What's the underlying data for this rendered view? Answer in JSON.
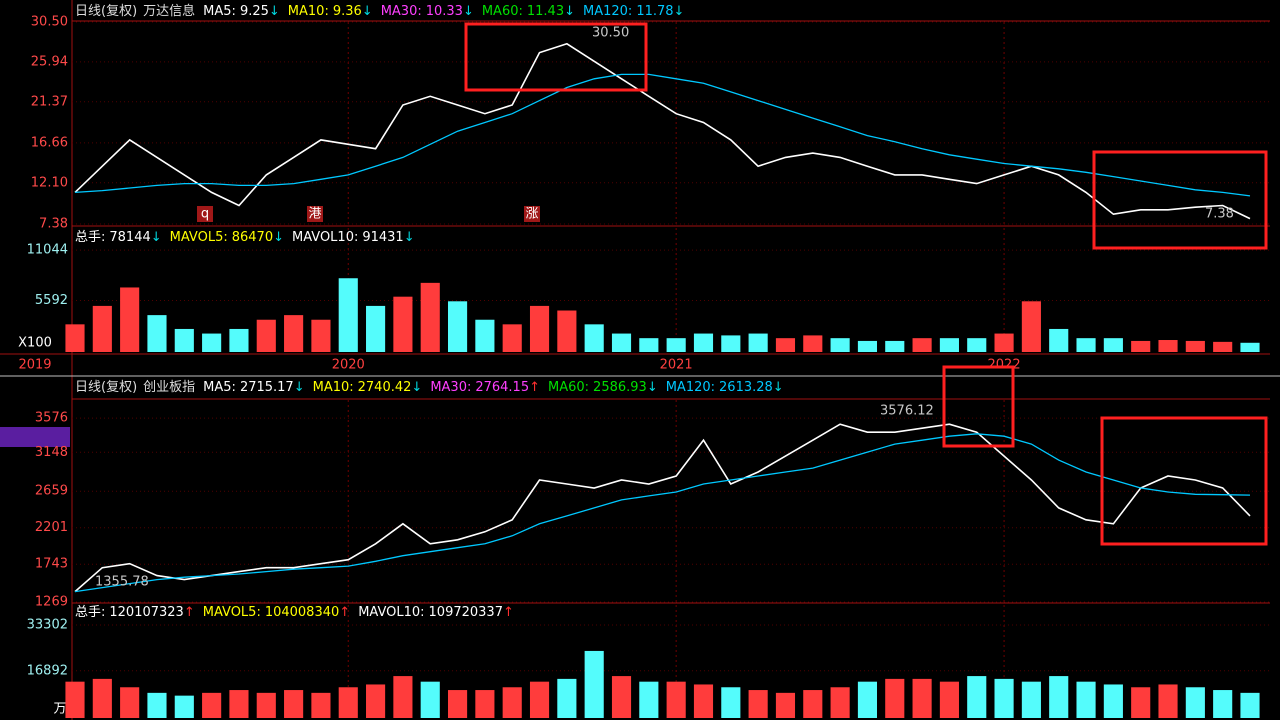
{
  "chart_data": [
    {
      "type": "line",
      "title": "日线(复权)",
      "name": "万达信息",
      "ylim": [
        7.38,
        30.5
      ],
      "yticks": [
        {
          "value": 30.5,
          "label": "30.50"
        },
        25.94,
        21.37,
        16.66,
        {
          "value": 12.1,
          "label": "12.10"
        },
        7.38
      ],
      "grid": true,
      "trend_colors": {
        "↓": "#00d8e0",
        "↑": "#ff3030"
      },
      "categories": [
        "2019",
        null,
        null,
        null,
        null,
        null,
        null,
        null,
        null,
        null,
        "2020",
        null,
        null,
        null,
        null,
        null,
        null,
        null,
        null,
        null,
        null,
        null,
        "2021",
        null,
        null,
        null,
        null,
        null,
        null,
        null,
        null,
        null,
        null,
        null,
        "2022",
        null,
        null,
        null,
        null,
        null,
        null,
        null,
        null,
        null
      ],
      "series": [
        {
          "name": "MA5:",
          "value": 9.25,
          "trend": "↓",
          "color": "#ffffff",
          "values": [
            11,
            14,
            17,
            15,
            13,
            11,
            9.5,
            13,
            15,
            17,
            16.5,
            16,
            21,
            22,
            21,
            20,
            21,
            27,
            28,
            26,
            24,
            22,
            20,
            19,
            17,
            14,
            15,
            15.5,
            15,
            14,
            13,
            13,
            12.5,
            12,
            13,
            14,
            13,
            11,
            8.5,
            9,
            9,
            9.3,
            9.5,
            8
          ]
        },
        {
          "name": "MA10:",
          "value": 9.36,
          "trend": "↓",
          "color": "#ffff00"
        },
        {
          "name": "MA30:",
          "value": 10.33,
          "trend": "↓",
          "color": "#ff40ff"
        },
        {
          "name": "MA60:",
          "value": 11.43,
          "trend": "↓",
          "color": "#00e000"
        },
        {
          "name": "MA120:",
          "value": 11.78,
          "trend": "↓",
          "color": "#00c8ff",
          "values": [
            11,
            11.2,
            11.5,
            11.8,
            12,
            12,
            11.8,
            11.8,
            12,
            12.5,
            13,
            14,
            15,
            16.5,
            18,
            19,
            20,
            21.5,
            23,
            24,
            24.5,
            24.5,
            24,
            23.5,
            22.5,
            21.5,
            20.5,
            19.5,
            18.5,
            17.5,
            16.8,
            16,
            15.3,
            14.8,
            14.3,
            14,
            13.7,
            13.3,
            12.8,
            12.3,
            11.8,
            11.3,
            11,
            10.6
          ]
        }
      ],
      "annotations": [
        {
          "value": 30.5,
          "label": "30.50"
        },
        7.38
      ],
      "markers": [
        "q",
        "港",
        "涨"
      ]
    },
    {
      "type": "bar",
      "ylim": [
        0,
        13450
      ],
      "yticks": [
        11044,
        5592
      ],
      "grid": true,
      "unit": "X100",
      "trend_colors": {
        "↓": "#00d8e0",
        "↑": "#ff3030"
      },
      "up_color": "#ff3c3c",
      "down_color": "#54fcfc",
      "series": [
        {
          "name": "总手:",
          "value": 78144,
          "trend": "↓",
          "color": "#ffffff",
          "values": [
            3000,
            5000,
            7000,
            4000,
            2500,
            2000,
            2500,
            3500,
            4000,
            3500,
            8000,
            5000,
            6000,
            7500,
            5500,
            3500,
            3000,
            5000,
            4500,
            3000,
            2000,
            1500,
            1500,
            2000,
            1800,
            2000,
            1500,
            1800,
            1500,
            1200,
            1200,
            1500,
            1500,
            1500,
            2000,
            5500,
            2500,
            1500,
            1500,
            1200,
            1300,
            1200,
            1100,
            1000
          ]
        },
        {
          "name": "MAVOL5:",
          "value": 86470,
          "trend": "↓",
          "color": "#ffff00"
        },
        {
          "name": "MAVOL10:",
          "value": 91431,
          "trend": "↓",
          "color": "#ffffff"
        }
      ]
    },
    {
      "type": "line",
      "title": "日线(复权)",
      "name": "创业板指",
      "ylim": [
        1269,
        3804
      ],
      "yticks": [
        3576,
        3148,
        2659,
        2201,
        1743,
        1269
      ],
      "grid": true,
      "trend_colors": {
        "↓": "#00d8e0",
        "↑": "#ff3030"
      },
      "series": [
        {
          "name": "MA5:",
          "value": 2715.17,
          "trend": "↓",
          "color": "#ffffff",
          "values": [
            1400,
            1700,
            1750,
            1600,
            1550,
            1600,
            1650,
            1700,
            1700,
            1750,
            1800,
            2000,
            2250,
            2000,
            2050,
            2150,
            2300,
            2800,
            2750,
            2700,
            2800,
            2750,
            2850,
            3300,
            2750,
            2900,
            3100,
            3300,
            3500,
            3400,
            3400,
            3450,
            3500,
            3400,
            3100,
            2800,
            2450,
            2300,
            2250,
            2700,
            2850,
            2800,
            2700,
            2350
          ]
        },
        {
          "name": "MA10:",
          "value": 2740.42,
          "trend": "↓",
          "color": "#ffff00"
        },
        {
          "name": "MA30:",
          "value": 2764.15,
          "trend": "↑",
          "color": "#ff40ff"
        },
        {
          "name": "MA60:",
          "value": 2586.93,
          "trend": "↓",
          "color": "#00e000"
        },
        {
          "name": "MA120:",
          "value": 2613.28,
          "trend": "↓",
          "color": "#00c8ff",
          "values": [
            1400,
            1450,
            1500,
            1550,
            1580,
            1600,
            1620,
            1650,
            1680,
            1700,
            1720,
            1780,
            1850,
            1900,
            1950,
            2000,
            2100,
            2250,
            2350,
            2450,
            2550,
            2600,
            2650,
            2750,
            2800,
            2850,
            2900,
            2950,
            3050,
            3150,
            3250,
            3300,
            3350,
            3380,
            3350,
            3250,
            3050,
            2900,
            2800,
            2700,
            2650,
            2620,
            2615,
            2610
          ]
        }
      ],
      "annotations": [
        3576.12,
        1355.78
      ]
    },
    {
      "type": "bar",
      "ylim": [
        0,
        40440
      ],
      "yticks": [
        33302,
        16892
      ],
      "grid": true,
      "unit": "万",
      "trend_colors": {
        "↓": "#00d8e0",
        "↑": "#ff3030"
      },
      "up_color": "#ff3c3c",
      "down_color": "#54fcfc",
      "series": [
        {
          "name": "总手:",
          "value": 120107323,
          "trend": "↑",
          "color": "#ffffff",
          "values": [
            13000,
            14000,
            11000,
            9000,
            8000,
            9000,
            10000,
            9000,
            10000,
            9000,
            11000,
            12000,
            15000,
            13000,
            10000,
            10000,
            11000,
            13000,
            14000,
            24000,
            15000,
            13000,
            13000,
            12000,
            11000,
            10000,
            9000,
            10000,
            11000,
            13000,
            14000,
            14000,
            13000,
            15000,
            14000,
            13000,
            15000,
            13000,
            12000,
            11000,
            12000,
            11000,
            10000,
            9000
          ]
        },
        {
          "name": "MAVOL5:",
          "value": 104008340,
          "trend": "↑",
          "color": "#ffff00"
        },
        {
          "name": "MAVOL10:",
          "value": 109720337,
          "trend": "↑",
          "color": "#ffffff"
        }
      ]
    }
  ]
}
